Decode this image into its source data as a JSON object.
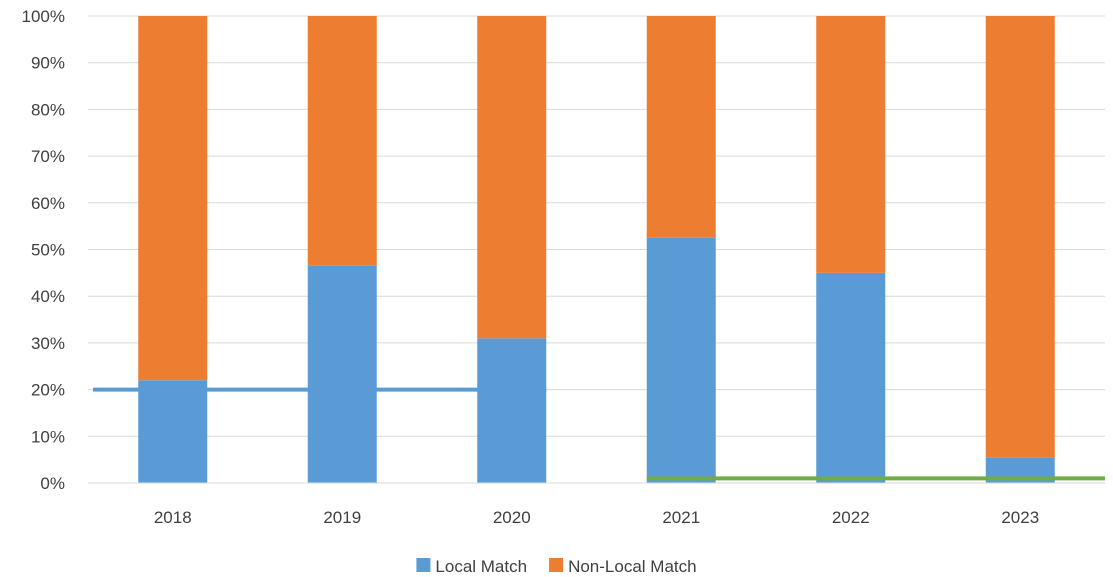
{
  "chart_data": {
    "type": "bar",
    "stacked": "100%",
    "categories": [
      "2018",
      "2019",
      "2020",
      "2021",
      "2022",
      "2023"
    ],
    "series": [
      {
        "name": "Local Match",
        "color": "#5B9BD5",
        "values": [
          22,
          46.5,
          31,
          52.5,
          45,
          5.5
        ]
      },
      {
        "name": "Non-Local Match",
        "color": "#ED7D31",
        "values": [
          78,
          53.5,
          69,
          47.5,
          55,
          94.5
        ]
      }
    ],
    "ylim": [
      0,
      100
    ],
    "yticks": [
      "0%",
      "10%",
      "20%",
      "30%",
      "40%",
      "50%",
      "60%",
      "70%",
      "80%",
      "90%",
      "100%"
    ],
    "grid": true,
    "legend": "bottom",
    "reference_lines": [
      {
        "value": 20,
        "from_category": "2018",
        "to_category": "2020",
        "color": "#5B9BD5"
      },
      {
        "value": 1,
        "from_category": "2021",
        "to_category": "2023",
        "color": "#70AD47"
      }
    ]
  }
}
